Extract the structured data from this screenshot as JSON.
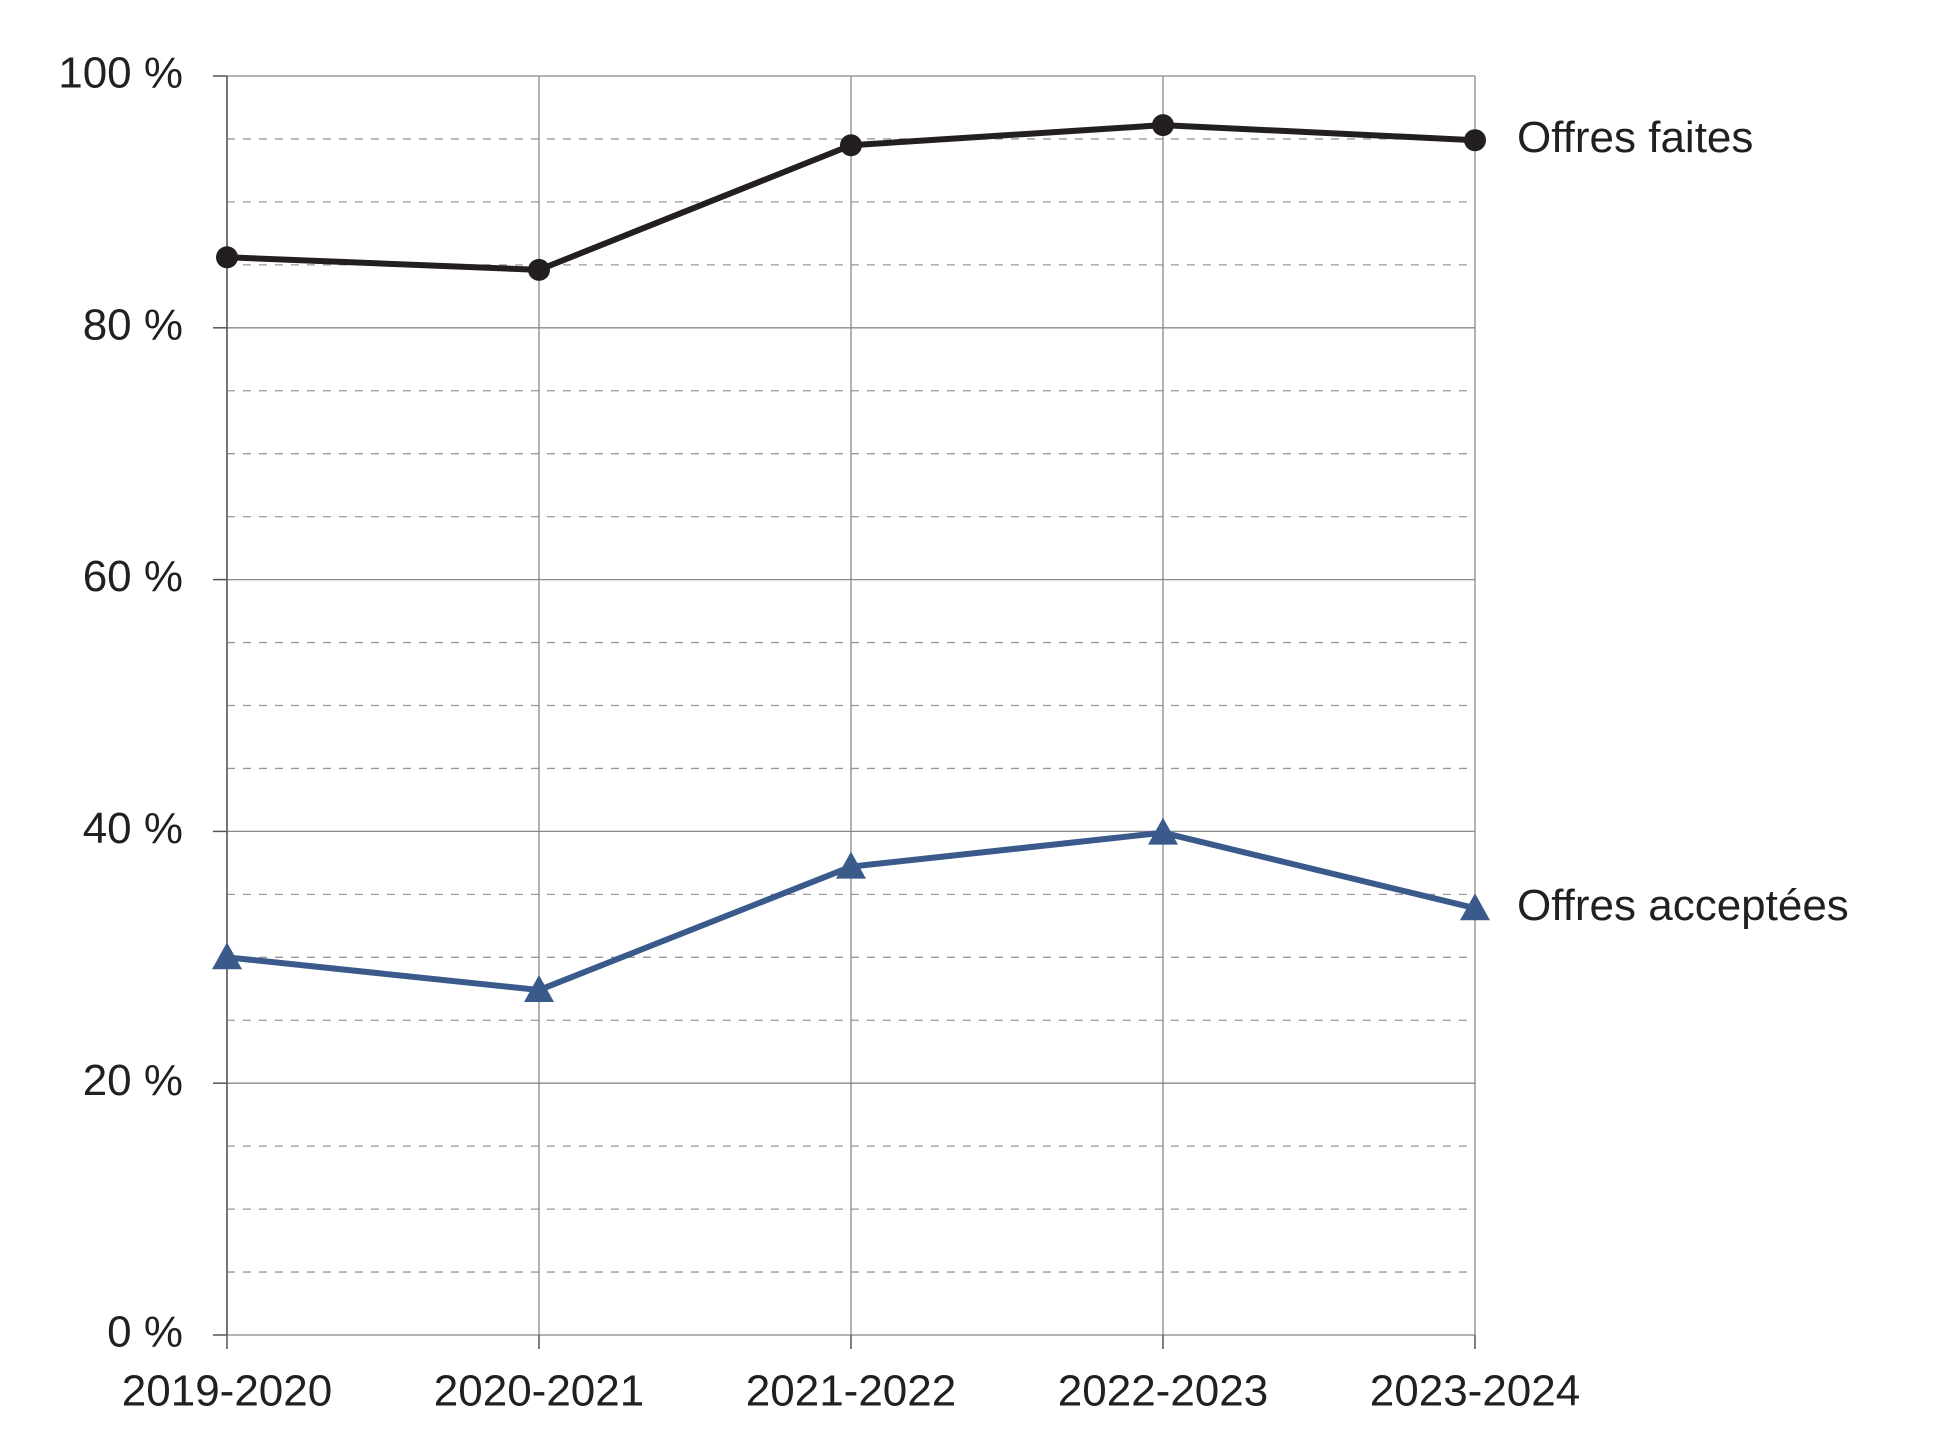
{
  "chart_data": {
    "type": "line",
    "categories": [
      "2019-2020",
      "2020-2021",
      "2021-2022",
      "2022-2023",
      "2023-2024"
    ],
    "series": [
      {
        "name": "Offres faites",
        "color": "#231f20",
        "marker": "circle",
        "values": [
          85.6,
          84.6,
          94.5,
          96.1,
          94.9
        ]
      },
      {
        "name": "Offres acceptées",
        "color": "#3a5a8c",
        "marker": "triangle",
        "values": [
          30.0,
          27.4,
          37.2,
          39.9,
          33.9
        ]
      }
    ],
    "ylim": [
      0,
      100
    ],
    "yticks": [
      {
        "value": 0,
        "label": "0 %"
      },
      {
        "value": 20,
        "label": "20 %"
      },
      {
        "value": 40,
        "label": "40 %"
      },
      {
        "value": 60,
        "label": "60 %"
      },
      {
        "value": 80,
        "label": "80 %"
      },
      {
        "value": 100,
        "label": "100 %"
      }
    ],
    "minor_yticks": [
      5,
      10,
      15,
      25,
      30,
      35,
      45,
      50,
      55,
      65,
      70,
      75,
      85,
      90,
      95
    ],
    "grid": true
  }
}
